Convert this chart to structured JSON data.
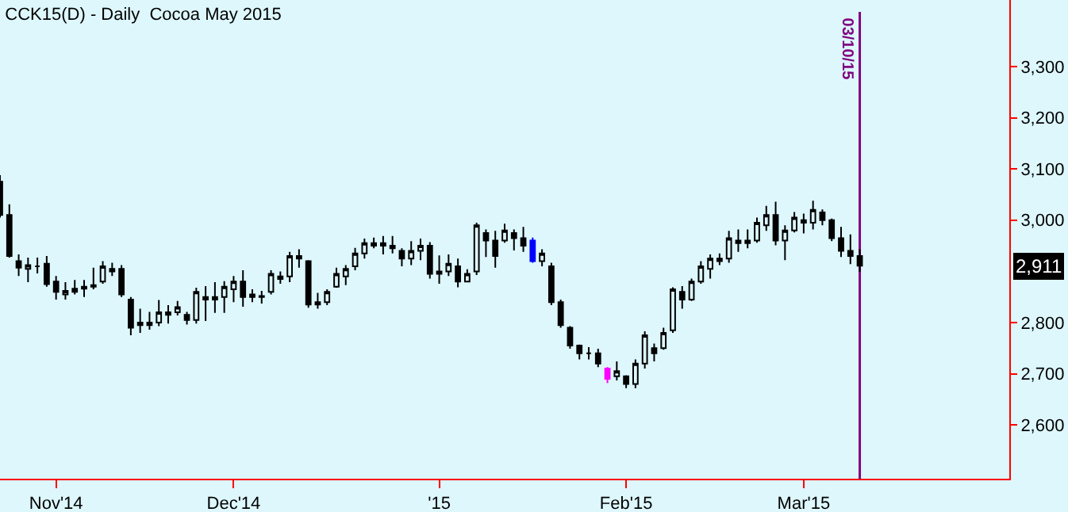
{
  "chart_data": {
    "type": "candlestick",
    "title": "CCK15(D) - Daily  Cocoa May 2015",
    "categories": [
      null,
      null,
      null,
      null,
      null,
      null,
      "Nov'14",
      null,
      null,
      null,
      null,
      null,
      null,
      null,
      null,
      null,
      null,
      null,
      null,
      null,
      null,
      null,
      null,
      null,
      null,
      "Dec'14",
      null,
      null,
      null,
      null,
      null,
      null,
      null,
      null,
      null,
      null,
      null,
      null,
      null,
      null,
      null,
      null,
      null,
      null,
      null,
      null,
      null,
      "'15",
      null,
      null,
      null,
      null,
      null,
      null,
      null,
      null,
      null,
      null,
      null,
      null,
      null,
      null,
      null,
      null,
      null,
      null,
      null,
      "Feb'15",
      null,
      null,
      null,
      null,
      null,
      null,
      null,
      null,
      null,
      null,
      null,
      null,
      null,
      null,
      null,
      null,
      null,
      null,
      "Mar'15",
      null,
      null,
      null,
      null,
      null,
      null,
      null,
      null,
      null,
      null,
      null,
      null,
      null,
      null,
      null,
      null,
      null,
      null,
      null,
      null,
      null,
      null
    ],
    "ohlc": [
      [
        3075,
        3088,
        3005,
        3010
      ],
      [
        3010,
        3031,
        2927,
        2930
      ],
      [
        2920,
        2933,
        2891,
        2907
      ],
      [
        2905,
        2927,
        2879,
        2912
      ],
      [
        2910,
        2927,
        2896,
        2910
      ],
      [
        2915,
        2930,
        2870,
        2875
      ],
      [
        2880,
        2891,
        2845,
        2860
      ],
      [
        2855,
        2879,
        2845,
        2862
      ],
      [
        2860,
        2883,
        2855,
        2866
      ],
      [
        2866,
        2883,
        2850,
        2870
      ],
      [
        2870,
        2907,
        2865,
        2873
      ],
      [
        2880,
        2920,
        2876,
        2910
      ],
      [
        2905,
        2917,
        2891,
        2900
      ],
      [
        2905,
        2912,
        2850,
        2855
      ],
      [
        2845,
        2850,
        2775,
        2790
      ],
      [
        2795,
        2827,
        2780,
        2800
      ],
      [
        2800,
        2821,
        2786,
        2795
      ],
      [
        2800,
        2844,
        2793,
        2820
      ],
      [
        2820,
        2834,
        2798,
        2815
      ],
      [
        2820,
        2842,
        2814,
        2830
      ],
      [
        2815,
        2821,
        2796,
        2805
      ],
      [
        2805,
        2868,
        2798,
        2860
      ],
      [
        2850,
        2871,
        2803,
        2845
      ],
      [
        2845,
        2879,
        2819,
        2850
      ],
      [
        2850,
        2881,
        2819,
        2870
      ],
      [
        2865,
        2891,
        2840,
        2880
      ],
      [
        2880,
        2902,
        2831,
        2850
      ],
      [
        2855,
        2865,
        2840,
        2850
      ],
      [
        2850,
        2862,
        2837,
        2852
      ],
      [
        2860,
        2902,
        2855,
        2895
      ],
      [
        2885,
        2900,
        2876,
        2890
      ],
      [
        2890,
        2938,
        2879,
        2930
      ],
      [
        2930,
        2943,
        2907,
        2925
      ],
      [
        2920,
        2922,
        2829,
        2835
      ],
      [
        2840,
        2858,
        2827,
        2835
      ],
      [
        2840,
        2865,
        2834,
        2860
      ],
      [
        2870,
        2907,
        2868,
        2895
      ],
      [
        2890,
        2912,
        2873,
        2905
      ],
      [
        2910,
        2946,
        2902,
        2935
      ],
      [
        2935,
        2964,
        2925,
        2955
      ],
      [
        2950,
        2966,
        2945,
        2955
      ],
      [
        2955,
        2969,
        2933,
        2950
      ],
      [
        2950,
        2969,
        2935,
        2945
      ],
      [
        2940,
        2945,
        2910,
        2925
      ],
      [
        2925,
        2959,
        2912,
        2940
      ],
      [
        2940,
        2964,
        2922,
        2950
      ],
      [
        2950,
        2957,
        2886,
        2895
      ],
      [
        2895,
        2931,
        2876,
        2900
      ],
      [
        2900,
        2933,
        2891,
        2915
      ],
      [
        2910,
        2925,
        2869,
        2880
      ],
      [
        2880,
        2904,
        2879,
        2895
      ],
      [
        2900,
        2995,
        2893,
        2990
      ],
      [
        2975,
        2982,
        2928,
        2960
      ],
      [
        2960,
        2979,
        2907,
        2930
      ],
      [
        2960,
        2993,
        2956,
        2980
      ],
      [
        2975,
        2982,
        2941,
        2965
      ],
      [
        2965,
        2987,
        2938,
        2950
      ],
      [
        2960,
        2966,
        2917,
        2920
      ],
      [
        2920,
        2943,
        2910,
        2935
      ],
      [
        2910,
        2917,
        2834,
        2840
      ],
      [
        2840,
        2845,
        2790,
        2795
      ],
      [
        2790,
        2793,
        2749,
        2755
      ],
      [
        2755,
        2757,
        2728,
        2740
      ],
      [
        2740,
        2752,
        2728,
        2740
      ],
      [
        2740,
        2749,
        2713,
        2720
      ],
      [
        2710,
        2713,
        2682,
        2690
      ],
      [
        2695,
        2724,
        2687,
        2705
      ],
      [
        2695,
        2697,
        2672,
        2680
      ],
      [
        2680,
        2728,
        2672,
        2720
      ],
      [
        2720,
        2783,
        2710,
        2775
      ],
      [
        2750,
        2759,
        2724,
        2740
      ],
      [
        2750,
        2790,
        2747,
        2780
      ],
      [
        2785,
        2869,
        2780,
        2865
      ],
      [
        2860,
        2871,
        2827,
        2845
      ],
      [
        2845,
        2886,
        2842,
        2880
      ],
      [
        2880,
        2920,
        2876,
        2910
      ],
      [
        2905,
        2933,
        2886,
        2925
      ],
      [
        2925,
        2935,
        2912,
        2920
      ],
      [
        2925,
        2979,
        2917,
        2965
      ],
      [
        2960,
        2982,
        2938,
        2955
      ],
      [
        2955,
        2982,
        2945,
        2960
      ],
      [
        2960,
        3005,
        2956,
        2995
      ],
      [
        2990,
        3028,
        2979,
        3010
      ],
      [
        3010,
        3036,
        2951,
        2960
      ],
      [
        2960,
        2990,
        2922,
        2980
      ],
      [
        2980,
        3016,
        2976,
        3005
      ],
      [
        3000,
        3013,
        2974,
        2995
      ],
      [
        2995,
        3038,
        2982,
        3020
      ],
      [
        3015,
        3021,
        2990,
        3000
      ],
      [
        3000,
        3003,
        2959,
        2965
      ],
      [
        2965,
        2987,
        2928,
        2940
      ],
      [
        2940,
        2972,
        2914,
        2930
      ],
      [
        2930,
        2943,
        2899,
        2911
      ],
      null,
      null,
      null,
      null,
      null,
      null,
      null,
      null,
      null,
      null,
      null,
      null,
      null,
      null,
      null,
      null
    ],
    "colors": [
      "#000000",
      "#000000",
      "#000000",
      "#000000",
      "#000000",
      "#000000",
      "#000000",
      "#000000",
      "#000000",
      "#000000",
      "#000000",
      "#000000",
      "#000000",
      "#000000",
      "#000000",
      "#000000",
      "#000000",
      "#000000",
      "#000000",
      "#000000",
      "#000000",
      "#000000",
      "#000000",
      "#000000",
      "#000000",
      "#000000",
      "#000000",
      "#000000",
      "#000000",
      "#000000",
      "#000000",
      "#000000",
      "#000000",
      "#000000",
      "#000000",
      "#000000",
      "#000000",
      "#000000",
      "#000000",
      "#000000",
      "#000000",
      "#000000",
      "#000000",
      "#000000",
      "#000000",
      "#000000",
      "#000000",
      "#000000",
      "#000000",
      "#000000",
      "#000000",
      "#000000",
      "#000000",
      "#000000",
      "#000000",
      "#000000",
      "#000000",
      "#0000ff",
      "#000000",
      "#000000",
      "#000000",
      "#000000",
      "#000000",
      "#000000",
      "#000000",
      "#ff00ff",
      "#000000",
      "#000000",
      "#000000",
      "#000000",
      "#000000",
      "#000000",
      "#000000",
      "#000000",
      "#000000",
      "#000000",
      "#000000",
      "#000000",
      "#000000",
      "#000000",
      "#000000",
      "#000000",
      "#000000",
      "#000000",
      "#000000",
      "#000000",
      "#000000",
      "#000000",
      "#000000",
      "#000000",
      "#000000",
      "#000000",
      "#000000",
      null,
      null,
      null,
      null,
      null,
      null,
      null,
      null,
      null,
      null,
      null,
      null,
      null,
      null,
      null,
      null
    ],
    "ylim": [
      2495,
      3430
    ],
    "yticks": [
      {
        "value": 2600,
        "label": "2,600"
      },
      {
        "value": 2700,
        "label": "2,700"
      },
      {
        "value": 2800,
        "label": "2,800"
      },
      {
        "value": 3000,
        "label": "3,000"
      },
      {
        "value": 3100,
        "label": "3,100"
      },
      {
        "value": 3200,
        "label": "3,200"
      },
      {
        "value": 3300,
        "label": "3,300"
      }
    ],
    "annotations": [
      "03/10/15",
      "2,911"
    ]
  }
}
